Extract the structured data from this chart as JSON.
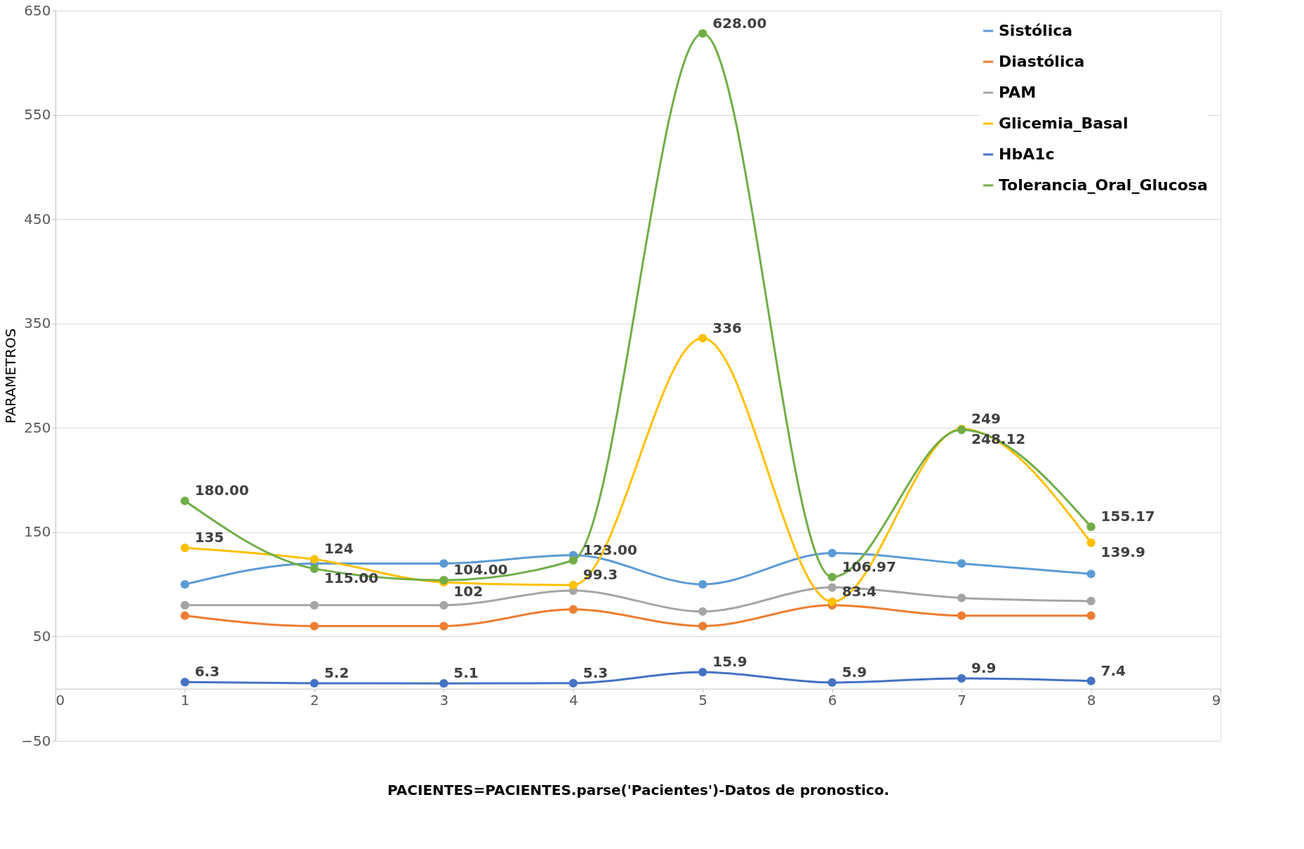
{
  "chart_data": {
    "type": "line",
    "xlabel": "PACIENTES=PACIENTES.parse('Pacientes')-Datos de pronostico.",
    "ylabel": "PARAMETROS",
    "x": [
      1,
      2,
      3,
      4,
      5,
      6,
      7,
      8
    ],
    "xlim": [
      0,
      9
    ],
    "xticks": [
      0,
      1,
      2,
      3,
      4,
      5,
      6,
      7,
      8,
      9
    ],
    "ylim": [
      -50,
      650
    ],
    "yticks": [
      -50,
      50,
      150,
      250,
      350,
      450,
      550,
      650
    ],
    "grid": "y",
    "legend": "top right",
    "marker": "circle",
    "line_style": "solid",
    "series": [
      {
        "name": "Sistólica",
        "color": "#5b9bd5",
        "values": [
          100,
          120,
          120,
          128,
          100,
          130,
          120,
          110
        ]
      },
      {
        "name": "Diastólica",
        "color": "#ed7d31",
        "values": [
          70,
          60,
          60,
          76,
          60,
          80,
          70,
          70
        ]
      },
      {
        "name": "PAM",
        "color": "#a5a5a5",
        "values": [
          80,
          80,
          80,
          94,
          74,
          97,
          87,
          84
        ]
      },
      {
        "name": "Glicemia_Basal",
        "color": "#ffc000",
        "values": [
          135,
          124,
          102,
          99.3,
          336,
          83.4,
          249,
          139.9
        ],
        "value_labels": [
          "135",
          "124",
          "102",
          "99.3",
          "336",
          "83.4",
          "249",
          "139.9"
        ]
      },
      {
        "name": "HbA1c",
        "color": "#4472c4",
        "values": [
          6.3,
          5.2,
          5.1,
          5.3,
          15.9,
          5.9,
          9.9,
          7.4
        ],
        "value_labels": [
          "6.3",
          "5.2",
          "5.1",
          "5.3",
          "15.9",
          "5.9",
          "9.9",
          "7.4"
        ]
      },
      {
        "name": "Tolerancia_Oral_Glucosa",
        "color": "#70ad47",
        "values": [
          180.0,
          115.0,
          104.0,
          123.0,
          628.0,
          106.97,
          248.12,
          155.17
        ],
        "value_labels": [
          "180.00",
          "115.00",
          "104.00",
          "123.00",
          "628.00",
          "106.97",
          "248.12",
          "155.17"
        ]
      }
    ]
  }
}
